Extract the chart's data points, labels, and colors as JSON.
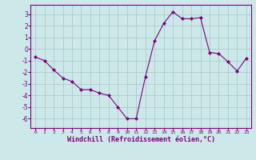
{
  "x": [
    0,
    1,
    2,
    3,
    4,
    5,
    6,
    7,
    8,
    9,
    10,
    11,
    12,
    13,
    14,
    15,
    16,
    17,
    18,
    19,
    20,
    21,
    22,
    23
  ],
  "y": [
    -0.7,
    -1.0,
    -1.8,
    -2.5,
    -2.8,
    -3.5,
    -3.5,
    -3.8,
    -4.0,
    -5.0,
    -6.0,
    -6.0,
    -2.4,
    0.7,
    2.2,
    3.2,
    2.6,
    2.6,
    2.7,
    -0.3,
    -0.4,
    -1.1,
    -1.9,
    -0.8
  ],
  "line_color": "#800080",
  "marker": "D",
  "marker_size": 2.0,
  "bg_color": "#cce8e8",
  "grid_color": "#aacccc",
  "xlabel": "Windchill (Refroidissement éolien,°C)",
  "xlim": [
    -0.5,
    23.5
  ],
  "ylim": [
    -6.8,
    3.8
  ],
  "yticks": [
    3,
    2,
    1,
    0,
    -1,
    -2,
    -3,
    -4,
    -5,
    -6
  ],
  "xticks": [
    0,
    1,
    2,
    3,
    4,
    5,
    6,
    7,
    8,
    9,
    10,
    11,
    12,
    13,
    14,
    15,
    16,
    17,
    18,
    19,
    20,
    21,
    22,
    23
  ],
  "tick_color": "#800080",
  "label_color": "#800080",
  "axis_color": "#800080",
  "xlabel_fontsize": 6.0,
  "xtick_fontsize": 4.5,
  "ytick_fontsize": 5.5
}
